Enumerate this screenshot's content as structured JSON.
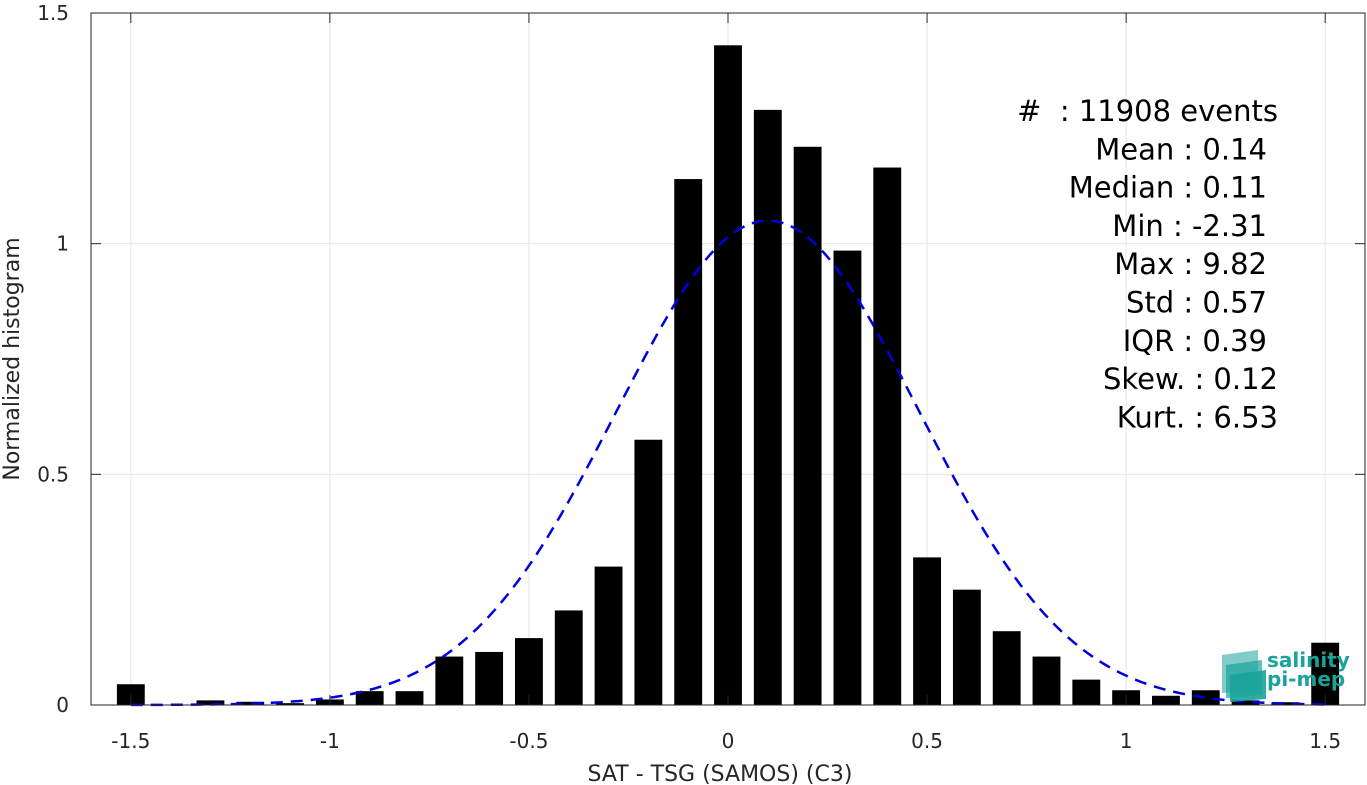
{
  "chart_data": {
    "type": "bar",
    "xlabel": "SAT - TSG (SAMOS) (C3)",
    "ylabel": "Normalized histogram",
    "xlim": [
      -1.6,
      1.6
    ],
    "ylim": [
      0,
      1.5
    ],
    "xticks": [
      -1.5,
      -1,
      -0.5,
      0,
      0.5,
      1,
      1.5
    ],
    "xtick_labels": [
      "-1.5",
      "-1",
      "-0.5",
      "0",
      "0.5",
      "1",
      "1.5"
    ],
    "yticks": [
      0,
      0.5,
      1,
      1.5
    ],
    "ytick_labels": [
      "0",
      "0.5",
      "1",
      "1.5"
    ],
    "grid": true,
    "bar_color": "#000000",
    "fit_color": "#0000dd",
    "bar_width": 0.07,
    "bins": [
      {
        "x": -1.5,
        "y": 0.045
      },
      {
        "x": -1.4,
        "y": 0.0
      },
      {
        "x": -1.3,
        "y": 0.01
      },
      {
        "x": -1.2,
        "y": 0.007
      },
      {
        "x": -1.1,
        "y": 0.004
      },
      {
        "x": -1.0,
        "y": 0.012
      },
      {
        "x": -0.9,
        "y": 0.03
      },
      {
        "x": -0.8,
        "y": 0.03
      },
      {
        "x": -0.7,
        "y": 0.105
      },
      {
        "x": -0.6,
        "y": 0.115
      },
      {
        "x": -0.5,
        "y": 0.145
      },
      {
        "x": -0.4,
        "y": 0.205
      },
      {
        "x": -0.3,
        "y": 0.3
      },
      {
        "x": -0.2,
        "y": 0.575
      },
      {
        "x": -0.1,
        "y": 1.14
      },
      {
        "x": 0.0,
        "y": 1.43
      },
      {
        "x": 0.1,
        "y": 1.29
      },
      {
        "x": 0.2,
        "y": 1.21
      },
      {
        "x": 0.3,
        "y": 0.985
      },
      {
        "x": 0.4,
        "y": 1.165
      },
      {
        "x": 0.5,
        "y": 0.32
      },
      {
        "x": 0.6,
        "y": 0.25
      },
      {
        "x": 0.7,
        "y": 0.16
      },
      {
        "x": 0.8,
        "y": 0.105
      },
      {
        "x": 0.9,
        "y": 0.055
      },
      {
        "x": 1.0,
        "y": 0.032
      },
      {
        "x": 1.1,
        "y": 0.02
      },
      {
        "x": 1.2,
        "y": 0.032
      },
      {
        "x": 1.3,
        "y": 0.01
      },
      {
        "x": 1.4,
        "y": 0.006
      },
      {
        "x": 1.5,
        "y": 0.135
      }
    ],
    "fit_curve": {
      "style": "dashed",
      "mean": 0.1,
      "std": 0.38,
      "peak": 1.05,
      "x_range": [
        -1.5,
        1.5
      ]
    },
    "stats": [
      "#  : 11908 events",
      "Mean : 0.14",
      "Median : 0.11",
      "Min : -2.31",
      "Max : 9.82",
      "Std : 0.57",
      "IQR : 0.39",
      "Skew. : 0.12",
      "Kurt. : 6.53"
    ]
  },
  "logo": {
    "line1": "salinity",
    "line2": "pi-mep",
    "color": "#1aa39a"
  }
}
